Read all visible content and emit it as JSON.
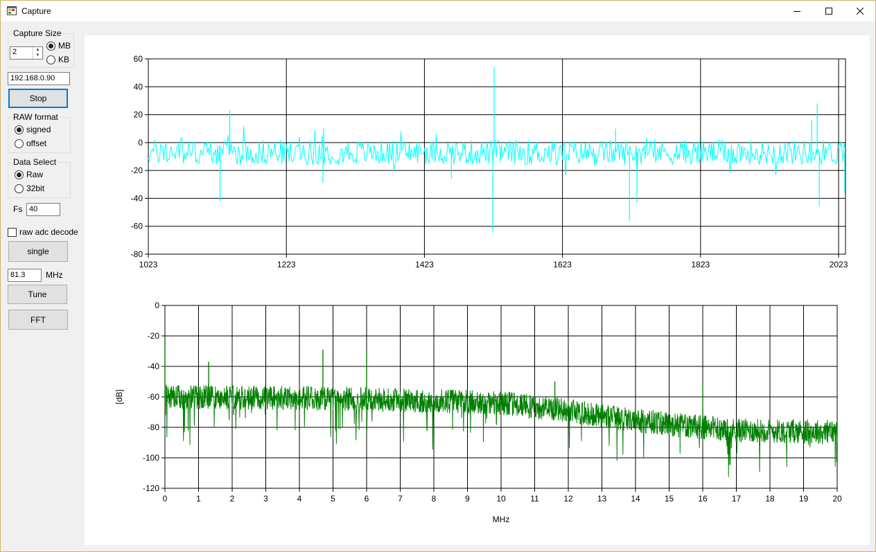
{
  "window": {
    "title": "Capture"
  },
  "icons": {
    "app": "app-window-icon",
    "minimize": "minimize-icon",
    "maximize": "maximize-icon",
    "close": "close-icon"
  },
  "capture_size": {
    "label": "Capture Size",
    "value": "2",
    "unit_mb": "MB",
    "unit_kb": "KB",
    "selected": "MB"
  },
  "ip_address": "192.168.0.90",
  "stop_button": "Stop",
  "raw_format": {
    "label": "RAW format",
    "signed": "signed",
    "offset": "offset",
    "selected": "signed"
  },
  "data_select": {
    "label": "Data Select",
    "raw": "Raw",
    "bit32": "32bit",
    "selected": "Raw"
  },
  "fs": {
    "label": "Fs",
    "value": "40"
  },
  "raw_adc_decode": {
    "label": "raw adc decode",
    "checked": false
  },
  "single_button": "single",
  "tune": {
    "value": "81.3",
    "unit": "MHz",
    "button": "Tune"
  },
  "fft_button": "FFT",
  "chart_data": [
    {
      "type": "line",
      "xlim": [
        1023,
        2033
      ],
      "ylim": [
        -80,
        60
      ],
      "xticks": [
        "1023",
        "1223",
        "1423",
        "1623",
        "1823",
        "2023"
      ],
      "yticks": [
        "60",
        "40",
        "20",
        "0",
        "-20",
        "-40",
        "-60",
        "-80"
      ],
      "grid": true,
      "color": "#00ffff",
      "spikes": [
        {
          "x": 1141,
          "y": 23
        },
        {
          "x": 1127,
          "y": -42
        },
        {
          "x": 1277,
          "y": 10
        },
        {
          "x": 1276,
          "y": -29
        },
        {
          "x": 1462,
          "y": -26
        },
        {
          "x": 1524,
          "y": 54
        },
        {
          "x": 1522,
          "y": -64
        },
        {
          "x": 1700,
          "y": 10
        },
        {
          "x": 1720,
          "y": -56
        },
        {
          "x": 1731,
          "y": -43
        },
        {
          "x": 1992,
          "y": 28
        },
        {
          "x": 1995,
          "y": -45
        },
        {
          "x": 1984,
          "y": 16
        },
        {
          "x": 2032,
          "y": -36
        }
      ],
      "baseline_mean": -7,
      "noise_amplitude": 9
    },
    {
      "type": "line",
      "xlim": [
        0,
        20
      ],
      "ylim": [
        -120,
        0
      ],
      "xticks": [
        "0",
        "1",
        "2",
        "3",
        "4",
        "5",
        "6",
        "7",
        "8",
        "9",
        "10",
        "11",
        "12",
        "13",
        "14",
        "15",
        "16",
        "17",
        "18",
        "19",
        "20"
      ],
      "yticks": [
        "0",
        "-20",
        "-40",
        "-60",
        "-80",
        "-100",
        "-120"
      ],
      "xlabel": "MHz",
      "ylabel": "[dB]",
      "grid": true,
      "color": "#008000",
      "trend": [
        {
          "x": 0,
          "y": -60
        },
        {
          "x": 5,
          "y": -61
        },
        {
          "x": 10,
          "y": -64
        },
        {
          "x": 12,
          "y": -69
        },
        {
          "x": 13.5,
          "y": -74
        },
        {
          "x": 15,
          "y": -78
        },
        {
          "x": 17,
          "y": -82
        },
        {
          "x": 20,
          "y": -83
        }
      ],
      "spikes": [
        {
          "x": 0,
          "y": -22
        },
        {
          "x": 1.3,
          "y": -37
        },
        {
          "x": 4.7,
          "y": -29
        },
        {
          "x": 6,
          "y": -31
        },
        {
          "x": 11.6,
          "y": -50
        },
        {
          "x": 16,
          "y": -51
        }
      ]
    }
  ]
}
